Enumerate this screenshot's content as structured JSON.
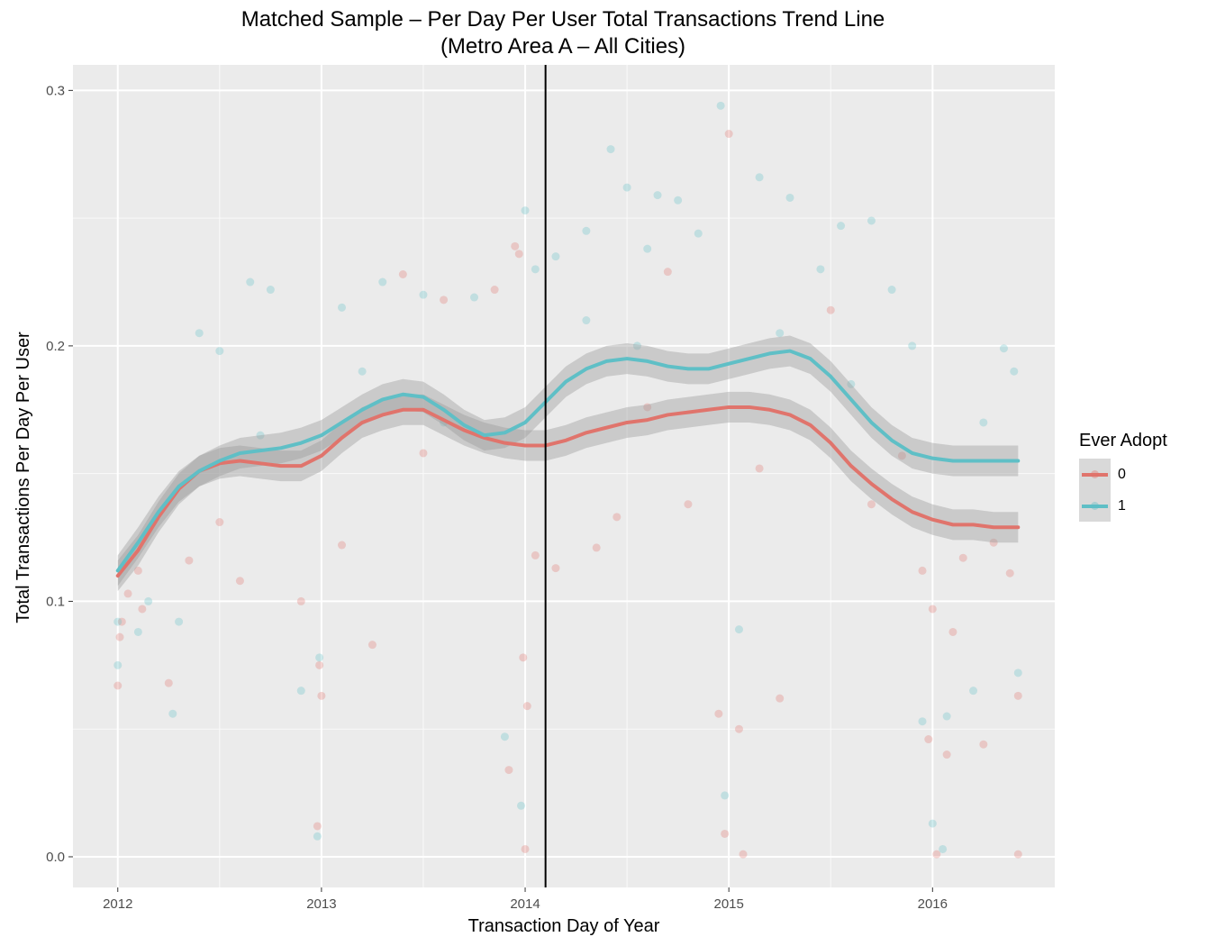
{
  "title": {
    "line1": "Matched Sample – Per Day Per User Total Transactions Trend Line",
    "line2": "(Metro Area A – All Cities)"
  },
  "chart_data": {
    "type": "scatter",
    "xlabel": "Transaction Day of Year",
    "ylabel": "Total Transactions Per Day Per User",
    "xlim": [
      2011.78,
      2016.6
    ],
    "ylim": [
      -0.012,
      0.31
    ],
    "x_ticks": [
      2012,
      2013,
      2014,
      2015,
      2016
    ],
    "y_ticks": [
      0.0,
      0.1,
      0.2,
      0.3
    ],
    "y_tick_labels": [
      "0.0",
      "0.1",
      "0.2",
      "0.3"
    ],
    "vline_x": 2014.1,
    "grid": true,
    "legend": {
      "title": "Ever Adopt",
      "placement": "right"
    },
    "series": [
      {
        "name": "0",
        "color": "#e0746c",
        "trend": [
          [
            2012.0,
            0.11
          ],
          [
            2012.1,
            0.12
          ],
          [
            2012.2,
            0.133
          ],
          [
            2012.3,
            0.144
          ],
          [
            2012.4,
            0.151
          ],
          [
            2012.5,
            0.154
          ],
          [
            2012.6,
            0.155
          ],
          [
            2012.7,
            0.154
          ],
          [
            2012.8,
            0.153
          ],
          [
            2012.9,
            0.153
          ],
          [
            2013.0,
            0.157
          ],
          [
            2013.1,
            0.164
          ],
          [
            2013.2,
            0.17
          ],
          [
            2013.3,
            0.173
          ],
          [
            2013.4,
            0.175
          ],
          [
            2013.5,
            0.175
          ],
          [
            2013.6,
            0.171
          ],
          [
            2013.7,
            0.167
          ],
          [
            2013.8,
            0.164
          ],
          [
            2013.9,
            0.162
          ],
          [
            2014.0,
            0.161
          ],
          [
            2014.1,
            0.161
          ],
          [
            2014.2,
            0.163
          ],
          [
            2014.3,
            0.166
          ],
          [
            2014.4,
            0.168
          ],
          [
            2014.5,
            0.17
          ],
          [
            2014.6,
            0.171
          ],
          [
            2014.7,
            0.173
          ],
          [
            2014.8,
            0.174
          ],
          [
            2014.9,
            0.175
          ],
          [
            2015.0,
            0.176
          ],
          [
            2015.1,
            0.176
          ],
          [
            2015.2,
            0.175
          ],
          [
            2015.3,
            0.173
          ],
          [
            2015.4,
            0.169
          ],
          [
            2015.5,
            0.162
          ],
          [
            2015.6,
            0.153
          ],
          [
            2015.7,
            0.146
          ],
          [
            2015.8,
            0.14
          ],
          [
            2015.9,
            0.135
          ],
          [
            2016.0,
            0.132
          ],
          [
            2016.1,
            0.13
          ],
          [
            2016.2,
            0.13
          ],
          [
            2016.3,
            0.129
          ],
          [
            2016.42,
            0.129
          ]
        ],
        "points": [
          [
            2012.0,
            0.067
          ],
          [
            2012.01,
            0.086
          ],
          [
            2012.02,
            0.092
          ],
          [
            2012.05,
            0.103
          ],
          [
            2012.1,
            0.112
          ],
          [
            2012.12,
            0.097
          ],
          [
            2012.25,
            0.068
          ],
          [
            2012.35,
            0.116
          ],
          [
            2012.5,
            0.131
          ],
          [
            2012.6,
            0.108
          ],
          [
            2012.9,
            0.1
          ],
          [
            2012.99,
            0.075
          ],
          [
            2013.0,
            0.063
          ],
          [
            2012.98,
            0.012
          ],
          [
            2013.1,
            0.122
          ],
          [
            2013.25,
            0.083
          ],
          [
            2013.4,
            0.228
          ],
          [
            2013.6,
            0.218
          ],
          [
            2013.85,
            0.222
          ],
          [
            2013.95,
            0.239
          ],
          [
            2013.97,
            0.236
          ],
          [
            2013.92,
            0.034
          ],
          [
            2013.99,
            0.078
          ],
          [
            2014.01,
            0.059
          ],
          [
            2014.0,
            0.003
          ],
          [
            2014.05,
            0.118
          ],
          [
            2014.15,
            0.113
          ],
          [
            2014.35,
            0.121
          ],
          [
            2014.45,
            0.133
          ],
          [
            2014.7,
            0.229
          ],
          [
            2014.8,
            0.138
          ],
          [
            2014.95,
            0.056
          ],
          [
            2014.98,
            0.009
          ],
          [
            2015.0,
            0.283
          ],
          [
            2015.05,
            0.05
          ],
          [
            2015.07,
            0.001
          ],
          [
            2015.25,
            0.062
          ],
          [
            2015.5,
            0.214
          ],
          [
            2015.7,
            0.138
          ],
          [
            2015.85,
            0.157
          ],
          [
            2015.95,
            0.112
          ],
          [
            2015.98,
            0.046
          ],
          [
            2016.0,
            0.097
          ],
          [
            2016.02,
            0.001
          ],
          [
            2016.07,
            0.04
          ],
          [
            2016.1,
            0.088
          ],
          [
            2016.15,
            0.117
          ],
          [
            2016.25,
            0.044
          ],
          [
            2016.3,
            0.123
          ],
          [
            2016.38,
            0.111
          ],
          [
            2016.42,
            0.063
          ],
          [
            2016.42,
            0.001
          ],
          [
            2015.15,
            0.152
          ],
          [
            2014.6,
            0.176
          ],
          [
            2013.5,
            0.158
          ]
        ]
      },
      {
        "name": "1",
        "color": "#5fbfc6",
        "trend": [
          [
            2012.0,
            0.112
          ],
          [
            2012.1,
            0.123
          ],
          [
            2012.2,
            0.135
          ],
          [
            2012.3,
            0.145
          ],
          [
            2012.4,
            0.151
          ],
          [
            2012.5,
            0.155
          ],
          [
            2012.6,
            0.158
          ],
          [
            2012.7,
            0.159
          ],
          [
            2012.8,
            0.16
          ],
          [
            2012.9,
            0.162
          ],
          [
            2013.0,
            0.165
          ],
          [
            2013.1,
            0.17
          ],
          [
            2013.2,
            0.175
          ],
          [
            2013.3,
            0.179
          ],
          [
            2013.4,
            0.181
          ],
          [
            2013.5,
            0.18
          ],
          [
            2013.6,
            0.175
          ],
          [
            2013.7,
            0.169
          ],
          [
            2013.8,
            0.165
          ],
          [
            2013.9,
            0.166
          ],
          [
            2014.0,
            0.17
          ],
          [
            2014.1,
            0.178
          ],
          [
            2014.2,
            0.186
          ],
          [
            2014.3,
            0.191
          ],
          [
            2014.4,
            0.194
          ],
          [
            2014.5,
            0.195
          ],
          [
            2014.6,
            0.194
          ],
          [
            2014.7,
            0.192
          ],
          [
            2014.8,
            0.191
          ],
          [
            2014.9,
            0.191
          ],
          [
            2015.0,
            0.193
          ],
          [
            2015.1,
            0.195
          ],
          [
            2015.2,
            0.197
          ],
          [
            2015.3,
            0.198
          ],
          [
            2015.4,
            0.195
          ],
          [
            2015.5,
            0.188
          ],
          [
            2015.6,
            0.179
          ],
          [
            2015.7,
            0.17
          ],
          [
            2015.8,
            0.163
          ],
          [
            2015.9,
            0.158
          ],
          [
            2016.0,
            0.156
          ],
          [
            2016.1,
            0.155
          ],
          [
            2016.2,
            0.155
          ],
          [
            2016.3,
            0.155
          ],
          [
            2016.42,
            0.155
          ]
        ],
        "points": [
          [
            2012.0,
            0.075
          ],
          [
            2012.0,
            0.092
          ],
          [
            2012.1,
            0.088
          ],
          [
            2012.15,
            0.1
          ],
          [
            2012.27,
            0.056
          ],
          [
            2012.3,
            0.092
          ],
          [
            2012.4,
            0.205
          ],
          [
            2012.5,
            0.198
          ],
          [
            2012.65,
            0.225
          ],
          [
            2012.75,
            0.222
          ],
          [
            2012.9,
            0.065
          ],
          [
            2012.99,
            0.078
          ],
          [
            2012.98,
            0.008
          ],
          [
            2013.1,
            0.215
          ],
          [
            2013.3,
            0.225
          ],
          [
            2013.5,
            0.22
          ],
          [
            2013.75,
            0.219
          ],
          [
            2013.9,
            0.047
          ],
          [
            2013.98,
            0.02
          ],
          [
            2014.0,
            0.253
          ],
          [
            2014.05,
            0.23
          ],
          [
            2014.15,
            0.235
          ],
          [
            2014.3,
            0.245
          ],
          [
            2014.42,
            0.277
          ],
          [
            2014.5,
            0.262
          ],
          [
            2014.6,
            0.238
          ],
          [
            2014.65,
            0.259
          ],
          [
            2014.75,
            0.257
          ],
          [
            2014.85,
            0.244
          ],
          [
            2014.96,
            0.294
          ],
          [
            2014.98,
            0.024
          ],
          [
            2015.05,
            0.089
          ],
          [
            2015.15,
            0.266
          ],
          [
            2015.3,
            0.258
          ],
          [
            2015.45,
            0.23
          ],
          [
            2015.55,
            0.247
          ],
          [
            2015.7,
            0.249
          ],
          [
            2015.8,
            0.222
          ],
          [
            2015.9,
            0.2
          ],
          [
            2015.95,
            0.053
          ],
          [
            2016.0,
            0.013
          ],
          [
            2016.05,
            0.003
          ],
          [
            2016.07,
            0.055
          ],
          [
            2016.2,
            0.065
          ],
          [
            2016.35,
            0.199
          ],
          [
            2016.42,
            0.072
          ],
          [
            2016.4,
            0.19
          ],
          [
            2013.6,
            0.17
          ],
          [
            2014.55,
            0.2
          ],
          [
            2015.25,
            0.205
          ],
          [
            2012.7,
            0.165
          ],
          [
            2013.2,
            0.19
          ],
          [
            2014.3,
            0.21
          ],
          [
            2015.6,
            0.185
          ],
          [
            2016.25,
            0.17
          ]
        ]
      }
    ]
  }
}
